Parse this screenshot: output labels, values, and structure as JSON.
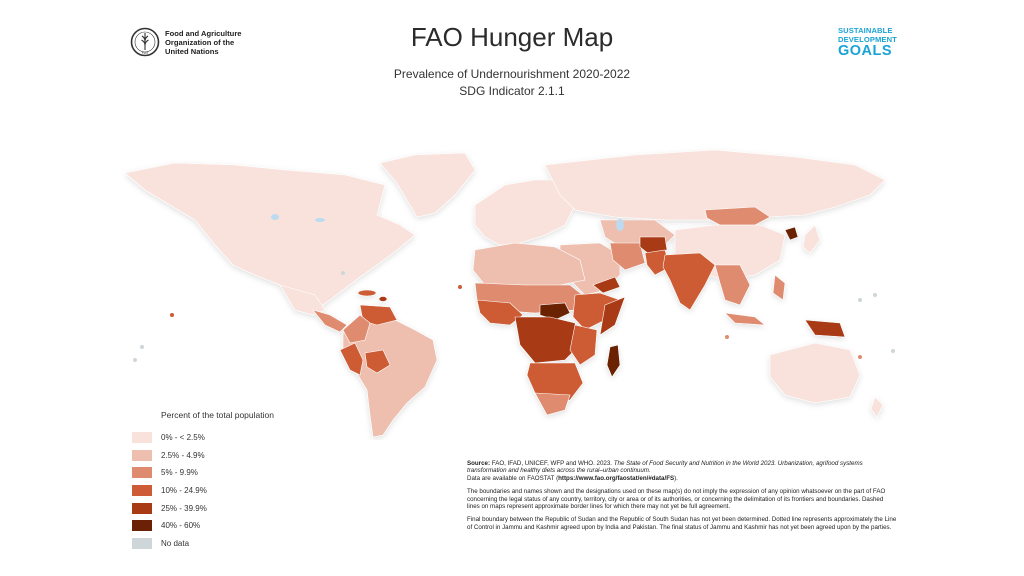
{
  "header": {
    "org_name_line1": "Food and Agriculture",
    "org_name_line2": "Organization of the",
    "org_name_line3": "United Nations",
    "title": "FAO Hunger Map",
    "subtitle": "Prevalence of Undernourishment 2020-2022",
    "indicator": "SDG Indicator 2.1.1",
    "sdg_line1": "SUSTAINABLE",
    "sdg_line2": "DEVELOPMENT",
    "sdg_line3": "GOALS"
  },
  "legend": {
    "title": "Percent of the total population",
    "items": [
      {
        "label": "0% - < 2.5%",
        "color": "#f9e2dc"
      },
      {
        "label": "2.5% - 4.9%",
        "color": "#eebfaf"
      },
      {
        "label": "5% - 9.9%",
        "color": "#df8b70"
      },
      {
        "label": "10% - 24.9%",
        "color": "#cd5c36"
      },
      {
        "label": "25% - 39.9%",
        "color": "#a83a14"
      },
      {
        "label": "40% - 60%",
        "color": "#6b2106"
      },
      {
        "label": "No data",
        "color": "#cfd6da"
      }
    ]
  },
  "notes": {
    "source_label": "Source:",
    "source_text": " FAO, IFAD, UNICEF, WFP and WHO. 2023. ",
    "source_title": "The State of Food Security and Nutrition in the World 2023. Urbanization, agrifood systems transformation and healthy diets across the rural–urban continuum.",
    "data_prefix": "Data are available on FAOSTAT (",
    "data_url": "https://www.fao.org/faostat/en/#data/FS",
    "data_suffix": ").",
    "disclaimer": "The boundaries and names shown and the designations used on these map(s) do not imply the expression of any opinion whatsoever on the part of FAO concerning the legal status of any country, territory, city or area or of its authorities, or concerning the delimitation of its frontiers and boundaries. Dashed lines on maps represent approximate border lines for which there may not yet be full agreement.",
    "boundary": "Final boundary between the Republic of Sudan and the Republic of South Sudan has not yet been determined. Dotted line represents approximately the Line of Control in Jammu and Kashmir agreed upon by India and Pakistan. The final status of Jammu and Kashmir has not yet been agreed upon by the parties."
  }
}
